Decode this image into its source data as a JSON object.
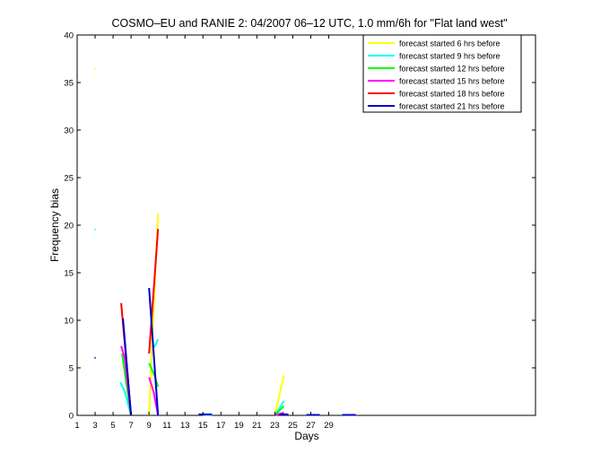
{
  "chart_data": {
    "type": "line",
    "title": "COSMO–EU and RANIE 2: 04/2007 06–12 UTC, 1.0 mm/6h for \"Flat land west\"",
    "xlabel": "Days",
    "ylabel": "Frequency bias",
    "xlim": [
      1,
      52
    ],
    "ylim": [
      0,
      40
    ],
    "xticks": [
      1,
      3,
      5,
      7,
      9,
      11,
      13,
      15,
      17,
      19,
      21,
      23,
      25,
      27,
      29
    ],
    "yticks": [
      0,
      5,
      10,
      15,
      20,
      25,
      30,
      35,
      40
    ],
    "legend_position": "top-right",
    "grid": false,
    "series": [
      {
        "name": "forecast started 6 hrs before",
        "color": "#ffff00",
        "segments": [
          [
            [
              3,
              36.5
            ],
            [
              3.02,
              36.4
            ]
          ],
          [
            [
              9,
              0
            ],
            [
              9.4,
              9.0
            ],
            [
              10,
              21.2
            ]
          ],
          [
            [
              23,
              0
            ],
            [
              24,
              4.2
            ]
          ]
        ]
      },
      {
        "name": "forecast started 9 hrs before",
        "color": "#00ffff",
        "segments": [
          [
            [
              3,
              19.6
            ],
            [
              3.02,
              19.5
            ]
          ],
          [
            [
              5.8,
              3.5
            ],
            [
              6.3,
              2.5
            ],
            [
              7,
              0
            ]
          ],
          [
            [
              9.6,
              7.2
            ],
            [
              10,
              8.0
            ]
          ],
          [
            [
              23,
              0
            ],
            [
              24,
              1.5
            ]
          ],
          [
            [
              15.0,
              0.05
            ],
            [
              16,
              0.05
            ]
          ]
        ]
      },
      {
        "name": "forecast started 12 hrs before",
        "color": "#00ff00",
        "segments": [
          [
            [
              6,
              6.5
            ],
            [
              7,
              0
            ]
          ],
          [
            [
              9,
              5.5
            ],
            [
              9.6,
              4.2
            ],
            [
              10,
              3.0
            ]
          ],
          [
            [
              23,
              0
            ],
            [
              24,
              1.0
            ]
          ]
        ]
      },
      {
        "name": "forecast started 15 hrs before",
        "color": "#ff00ff",
        "segments": [
          [
            [
              5.9,
              7.3
            ],
            [
              6.3,
              6.0
            ],
            [
              7,
              0
            ]
          ],
          [
            [
              9,
              4.0
            ],
            [
              9.5,
              2.5
            ],
            [
              10,
              0
            ]
          ],
          [
            [
              23,
              0
            ],
            [
              24,
              0.3
            ]
          ]
        ]
      },
      {
        "name": "forecast started 18 hrs before",
        "color": "#ff0000",
        "segments": [
          [
            [
              5.9,
              11.8
            ],
            [
              7,
              0
            ]
          ],
          [
            [
              9,
              6.5
            ],
            [
              9.5,
              13.0
            ],
            [
              10,
              19.6
            ]
          ]
        ]
      },
      {
        "name": "forecast started 21 hrs before",
        "color": "#0000cc",
        "segments": [
          [
            [
              3,
              6.1
            ],
            [
              3.02,
              6.0
            ]
          ],
          [
            [
              6.1,
              10.2
            ],
            [
              7,
              0
            ]
          ],
          [
            [
              9,
              13.4
            ],
            [
              10,
              0
            ]
          ],
          [
            [
              14.5,
              0.1
            ],
            [
              16,
              0.1
            ]
          ],
          [
            [
              23.5,
              0.1
            ],
            [
              24.5,
              0.1
            ]
          ],
          [
            [
              26.5,
              0.05
            ],
            [
              28,
              0.05
            ]
          ],
          [
            [
              30.5,
              0.05
            ],
            [
              32,
              0.05
            ]
          ]
        ]
      }
    ]
  }
}
